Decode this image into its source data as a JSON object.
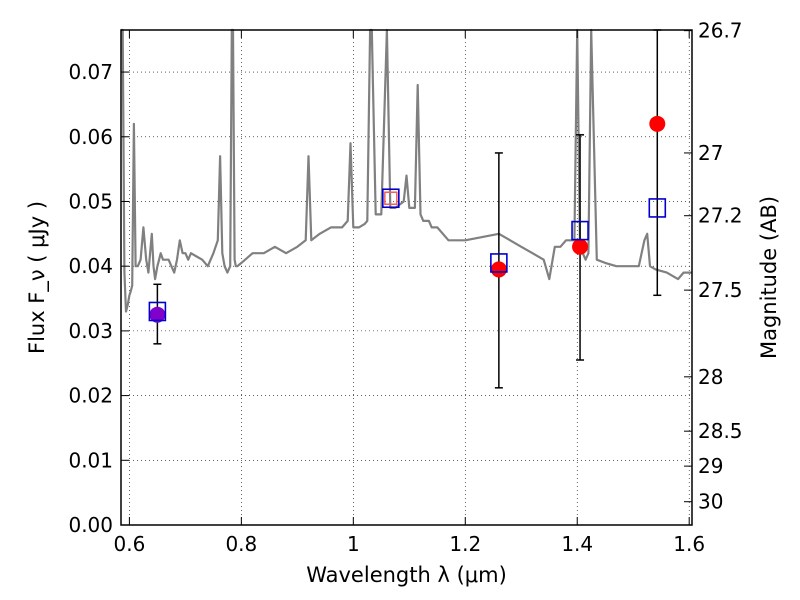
{
  "chart_data": {
    "type": "scatter",
    "xlabel": "Wavelength  λ (μm)",
    "ylabel": "Flux  F_ν  ( μJy )",
    "ylabel_right": "Magnitude (AB)",
    "xlim": [
      0.585,
      1.605
    ],
    "ylim": [
      0.0,
      0.0765
    ],
    "x_ticks": [
      {
        "value": 0.6,
        "label": "0.6"
      },
      {
        "value": 0.8,
        "label": "0.8"
      },
      {
        "value": 1.0,
        "label": "1"
      },
      {
        "value": 1.2,
        "label": "1.2"
      },
      {
        "value": 1.4,
        "label": "1.4"
      },
      {
        "value": 1.6,
        "label": "1.6"
      }
    ],
    "y_ticks": [
      {
        "value": 0.0,
        "label": "0.00"
      },
      {
        "value": 0.01,
        "label": "0.01"
      },
      {
        "value": 0.02,
        "label": "0.02"
      },
      {
        "value": 0.03,
        "label": "0.03"
      },
      {
        "value": 0.04,
        "label": "0.04"
      },
      {
        "value": 0.05,
        "label": "0.05"
      },
      {
        "value": 0.06,
        "label": "0.06"
      },
      {
        "value": 0.07,
        "label": "0.07"
      }
    ],
    "right_ticks": [
      {
        "flux": 0.0764,
        "label": "26.7"
      },
      {
        "flux": 0.0575,
        "label": "27"
      },
      {
        "flux": 0.0478,
        "label": "27.2"
      },
      {
        "flux": 0.0363,
        "label": "27.5"
      },
      {
        "flux": 0.0229,
        "label": "28"
      },
      {
        "flux": 0.0145,
        "label": "28.5"
      },
      {
        "flux": 0.0091,
        "label": "29"
      },
      {
        "flux": 0.0036,
        "label": "30"
      }
    ],
    "grid": true,
    "spectrum": {
      "color": "#808080",
      "x": [
        0.585,
        0.588,
        0.591,
        0.594,
        0.597,
        0.6,
        0.602,
        0.605,
        0.608,
        0.611,
        0.615,
        0.62,
        0.625,
        0.63,
        0.634,
        0.637,
        0.64,
        0.643,
        0.646,
        0.65,
        0.653,
        0.656,
        0.66,
        0.665,
        0.67,
        0.675,
        0.68,
        0.685,
        0.69,
        0.695,
        0.7,
        0.705,
        0.71,
        0.72,
        0.73,
        0.74,
        0.75,
        0.758,
        0.762,
        0.766,
        0.77,
        0.775,
        0.78,
        0.783,
        0.785,
        0.788,
        0.79,
        0.793,
        0.8,
        0.82,
        0.84,
        0.86,
        0.88,
        0.9,
        0.915,
        0.92,
        0.925,
        0.94,
        0.96,
        0.98,
        0.99,
        0.995,
        1.0,
        1.01,
        1.02,
        1.025,
        1.03,
        1.033,
        1.04,
        1.05,
        1.06,
        1.066,
        1.075,
        1.09,
        1.095,
        1.1,
        1.11,
        1.115,
        1.12,
        1.125,
        1.135,
        1.14,
        1.15,
        1.17,
        1.2,
        1.23,
        1.26,
        1.28,
        1.3,
        1.32,
        1.34,
        1.35,
        1.36,
        1.37,
        1.38,
        1.395,
        1.4,
        1.405,
        1.41,
        1.415,
        1.42,
        1.425,
        1.435,
        1.45,
        1.47,
        1.49,
        1.51,
        1.52,
        1.525,
        1.53,
        1.54,
        1.56,
        1.58,
        1.59,
        1.605
      ],
      "y": [
        0.0765,
        0.0765,
        0.039,
        0.033,
        0.034,
        0.0355,
        0.036,
        0.037,
        0.062,
        0.04,
        0.04,
        0.041,
        0.046,
        0.041,
        0.039,
        0.042,
        0.045,
        0.04,
        0.038,
        0.04,
        0.041,
        0.042,
        0.041,
        0.041,
        0.041,
        0.04,
        0.039,
        0.041,
        0.044,
        0.042,
        0.042,
        0.041,
        0.042,
        0.0415,
        0.041,
        0.04,
        0.042,
        0.044,
        0.057,
        0.042,
        0.04,
        0.039,
        0.04,
        0.0765,
        0.0765,
        0.041,
        0.04,
        0.04,
        0.0405,
        0.042,
        0.042,
        0.043,
        0.042,
        0.043,
        0.044,
        0.057,
        0.044,
        0.045,
        0.046,
        0.046,
        0.047,
        0.059,
        0.046,
        0.046,
        0.0465,
        0.047,
        0.0765,
        0.0765,
        0.048,
        0.048,
        0.0765,
        0.049,
        0.049,
        0.05,
        0.054,
        0.049,
        0.049,
        0.068,
        0.048,
        0.047,
        0.047,
        0.046,
        0.046,
        0.044,
        0.044,
        0.0445,
        0.045,
        0.044,
        0.043,
        0.042,
        0.041,
        0.038,
        0.043,
        0.043,
        0.044,
        0.044,
        0.0765,
        0.043,
        0.042,
        0.041,
        0.042,
        0.0765,
        0.041,
        0.0405,
        0.04,
        0.04,
        0.04,
        0.044,
        0.045,
        0.04,
        0.0395,
        0.039,
        0.038,
        0.039,
        0.039
      ]
    },
    "model_points": {
      "color": "#0000cc",
      "x": [
        0.65,
        1.067,
        1.26,
        1.405,
        1.543
      ],
      "y": [
        0.033,
        0.0505,
        0.0405,
        0.0455,
        0.049
      ]
    },
    "observed_points": {
      "x": [
        0.65,
        1.067,
        1.26,
        1.405,
        1.543
      ],
      "y": [
        0.0325,
        0.0505,
        0.0395,
        0.043,
        0.062
      ],
      "err_low": [
        0.028,
        null,
        0.0212,
        0.0255,
        0.0355
      ],
      "err_high": [
        0.0372,
        null,
        0.0575,
        0.0603,
        0.0765
      ],
      "colors": [
        "#8000cc",
        "#f06060",
        "#ff0000",
        "#ff0000",
        "#ff0000"
      ],
      "markers": [
        "circle",
        "square",
        "circle",
        "circle",
        "circle"
      ]
    }
  }
}
